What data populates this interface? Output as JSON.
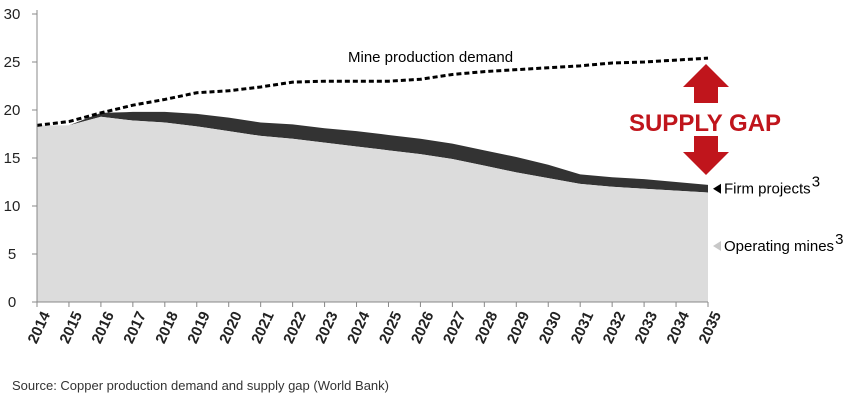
{
  "chart_data": {
    "type": "area",
    "title": "",
    "xlabel": "",
    "ylabel": "",
    "ylim": [
      0,
      30
    ],
    "yticks": [
      0,
      5,
      10,
      15,
      20,
      25,
      30
    ],
    "x": [
      "2014",
      "2015",
      "2016",
      "2017",
      "2018",
      "2019",
      "2020",
      "2021",
      "2022",
      "2023",
      "2024",
      "2025",
      "2026",
      "2027",
      "2028",
      "2029",
      "2030",
      "2031",
      "2032",
      "2033",
      "2034",
      "2035"
    ],
    "series": [
      {
        "name": "Operating mines",
        "kind": "area",
        "color": "#dcdcdc",
        "values": [
          18.4,
          18.4,
          19.3,
          18.9,
          18.7,
          18.3,
          17.8,
          17.3,
          17.0,
          16.6,
          16.2,
          15.8,
          15.4,
          14.9,
          14.2,
          13.5,
          12.9,
          12.3,
          12.0,
          11.8,
          11.6,
          11.4
        ]
      },
      {
        "name": "Firm projects",
        "kind": "area",
        "color": "#333333",
        "values": [
          18.4,
          18.4,
          19.7,
          19.8,
          19.8,
          19.6,
          19.2,
          18.7,
          18.5,
          18.1,
          17.8,
          17.4,
          17.0,
          16.5,
          15.8,
          15.1,
          14.3,
          13.3,
          13.0,
          12.8,
          12.5,
          12.2
        ]
      },
      {
        "name": "Mine production demand",
        "kind": "dashed-line",
        "color": "#000000",
        "values": [
          18.4,
          18.8,
          19.7,
          20.5,
          21.1,
          21.8,
          22.0,
          22.4,
          22.9,
          23.0,
          23.0,
          23.0,
          23.2,
          23.7,
          24.0,
          24.2,
          24.4,
          24.6,
          24.9,
          25.0,
          25.2,
          25.4
        ]
      }
    ],
    "labels": {
      "demand": "Mine production demand",
      "firm": "Firm projects",
      "operating": "Operating mines",
      "superscript": "3",
      "supply_gap": "SUPPLY GAP"
    },
    "colors": {
      "gap_arrow": "#c0151c",
      "axis": "#888888"
    },
    "grid": false,
    "legend": "inline-right"
  },
  "source_text": "Source: Copper production demand and supply gap (World Bank)"
}
